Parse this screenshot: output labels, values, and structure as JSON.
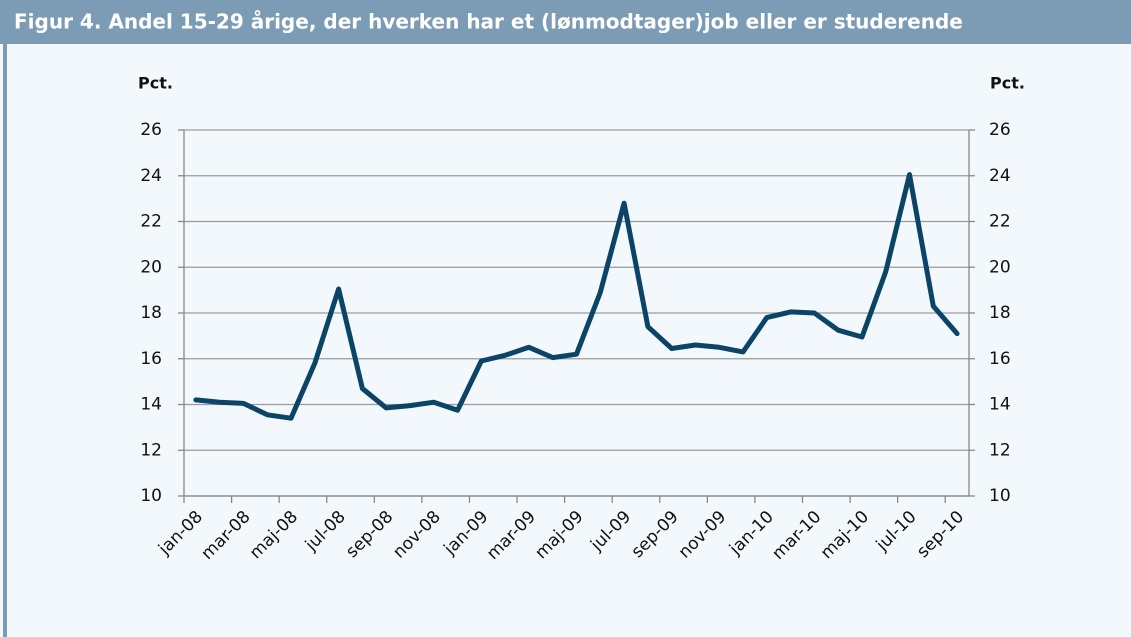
{
  "chart_data": {
    "type": "line",
    "title": "Figur 4. Andel 15-29 årige, der hverken har et (lønmodtager)job eller er studerende",
    "ylabel": "Pct.",
    "y2label": "Pct.",
    "categories": [
      "jan-08",
      null,
      "mar-08",
      null,
      "maj-08",
      null,
      "jul-08",
      null,
      "sep-08",
      null,
      "nov-08",
      null,
      "jan-09",
      null,
      "mar-09",
      null,
      "maj-09",
      null,
      "jul-09",
      null,
      "sep-09",
      null,
      "nov-09",
      null,
      "jan-10",
      null,
      "mar-10",
      null,
      "maj-10",
      null,
      "jul-10",
      null,
      "sep-10"
    ],
    "series": [
      {
        "color": "#0b4466",
        "values": [
          14.2,
          14.1,
          14.05,
          13.55,
          13.4,
          15.8,
          19.05,
          14.7,
          13.85,
          13.95,
          14.1,
          13.75,
          15.9,
          16.15,
          16.5,
          16.05,
          16.2,
          18.9,
          22.8,
          17.4,
          16.45,
          16.6,
          16.5,
          16.3,
          17.8,
          18.05,
          18.0,
          17.25,
          16.95,
          19.8,
          24.05,
          18.3,
          17.1
        ]
      }
    ],
    "ylim": [
      10,
      26
    ],
    "yticks": [
      10,
      12,
      14,
      16,
      18,
      20,
      22,
      24,
      26
    ],
    "y2lim": [
      10,
      26
    ],
    "y2ticks": [
      10,
      12,
      14,
      16,
      18,
      20,
      22,
      24,
      26
    ],
    "grid": true
  }
}
